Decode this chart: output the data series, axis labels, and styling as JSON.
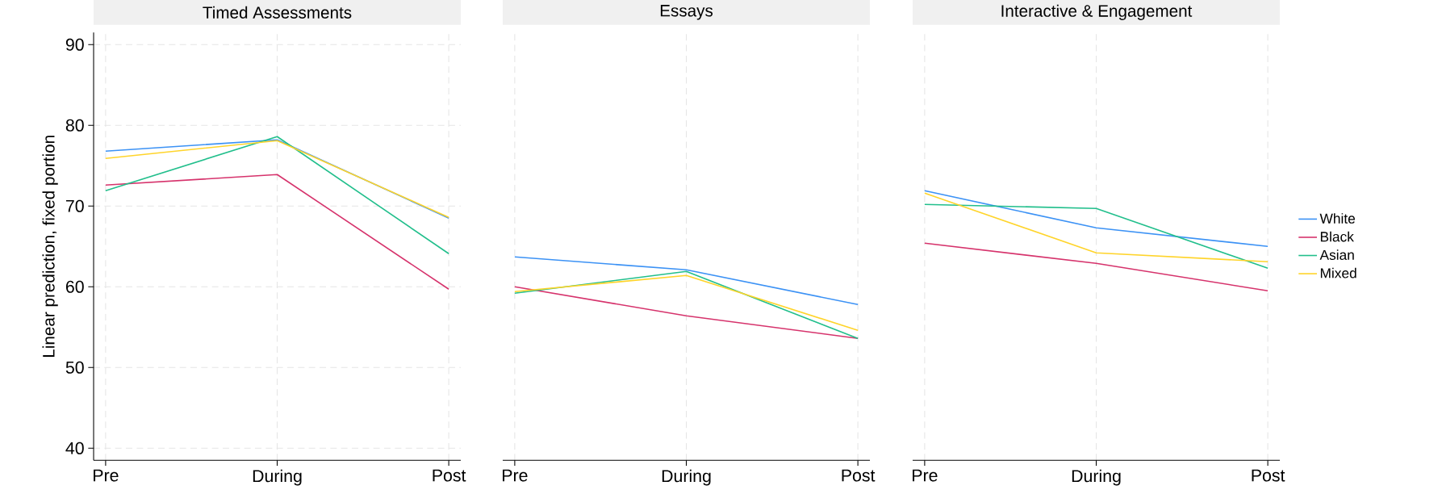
{
  "chart_data": [
    {
      "type": "line",
      "title": "Timed Assessments",
      "ylabel": "Linear prediction, fixed portion",
      "categories": [
        "Pre",
        "During",
        "Post"
      ],
      "ylim": [
        38.5,
        91.5
      ],
      "yticks": [
        40,
        50,
        60,
        70,
        80,
        90
      ],
      "grid": true,
      "marker": "none",
      "series": [
        {
          "color": "#3c92f5",
          "values": [
            76.8,
            78.2,
            68.5
          ]
        },
        {
          "color": "#d6336c",
          "values": [
            72.6,
            73.9,
            59.7
          ]
        },
        {
          "color": "#22bf8c",
          "values": [
            71.9,
            78.6,
            64.1
          ]
        },
        {
          "color": "#ffd42a",
          "values": [
            75.9,
            78.1,
            68.6
          ]
        }
      ]
    },
    {
      "type": "line",
      "title": "Essays",
      "categories": [
        "Pre",
        "During",
        "Post"
      ],
      "ylim": [
        38.5,
        91.5
      ],
      "yticks": [
        40,
        50,
        60,
        70,
        80,
        90
      ],
      "grid": true,
      "tick_labels": "x",
      "marker": "none",
      "series": [
        {
          "color": "#3c92f5",
          "values": [
            63.7,
            62.1,
            57.8
          ]
        },
        {
          "color": "#d6336c",
          "values": [
            60.0,
            56.4,
            53.6
          ]
        },
        {
          "color": "#22bf8c",
          "values": [
            59.2,
            61.9,
            53.6
          ]
        },
        {
          "color": "#ffd42a",
          "values": [
            59.4,
            61.4,
            54.6
          ]
        }
      ]
    },
    {
      "type": "line",
      "title": "Interactive & Engagement",
      "categories": [
        "Pre",
        "During",
        "Post"
      ],
      "ylim": [
        38.5,
        91.5
      ],
      "yticks": [
        40,
        50,
        60,
        70,
        80,
        90
      ],
      "grid": true,
      "tick_labels": "x",
      "legend": "right",
      "marker": "none",
      "series": [
        {
          "name": "White",
          "color": "#3c92f5",
          "values": [
            71.9,
            67.3,
            65.0
          ]
        },
        {
          "name": "Black",
          "color": "#d6336c",
          "values": [
            65.4,
            62.9,
            59.5
          ]
        },
        {
          "name": "Asian",
          "color": "#22bf8c",
          "values": [
            70.2,
            69.7,
            62.3
          ]
        },
        {
          "name": "Mixed",
          "color": "#ffd42a",
          "values": [
            71.6,
            64.2,
            63.1
          ]
        }
      ]
    }
  ]
}
